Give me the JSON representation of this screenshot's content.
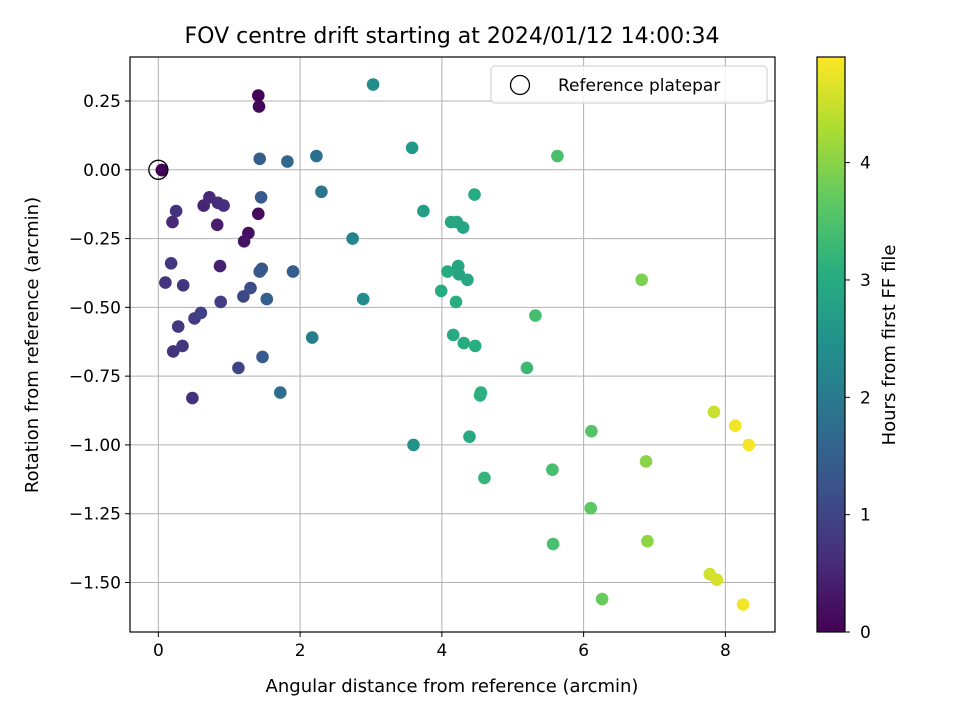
{
  "chart_data": {
    "type": "scatter",
    "title": "FOV centre drift starting at 2024/01/12 14:00:34",
    "xlabel": "Angular distance from reference (arcmin)",
    "ylabel": "Rotation from reference (arcmin)",
    "xlim": [
      -0.4,
      8.7
    ],
    "ylim": [
      -1.68,
      0.41
    ],
    "xticks": [
      0,
      2,
      4,
      6,
      8
    ],
    "xtick_labels": [
      "0",
      "2",
      "4",
      "6",
      "8"
    ],
    "yticks": [
      0.25,
      0.0,
      -0.25,
      -0.5,
      -0.75,
      -1.0,
      -1.25,
      -1.5
    ],
    "ytick_labels": [
      "0.25",
      "0.00",
      "−0.25",
      "−0.50",
      "−0.75",
      "−1.00",
      "−1.25",
      "−1.50"
    ],
    "grid": true,
    "colormap": "viridis",
    "legend": {
      "position": "top-right",
      "entries": [
        "Reference platepar"
      ]
    },
    "reference_point": {
      "x": 0.0,
      "y": 0.0
    },
    "colorbar": {
      "label": "Hours from first FF file",
      "range": [
        0,
        4.9
      ],
      "ticks": [
        0,
        1,
        2,
        3,
        4
      ],
      "tick_labels": [
        "0",
        "1",
        "2",
        "3",
        "4"
      ]
    },
    "series": [
      {
        "x": [
          1.41,
          1.42,
          1.41,
          1.27,
          1.21,
          0.05,
          0.05,
          0.2,
          0.83,
          0.87,
          0.1,
          0.25,
          0.64,
          0.72,
          0.84,
          0.92,
          0.35,
          0.51,
          0.18,
          0.28,
          0.34,
          0.21,
          0.48,
          0.88,
          0.6,
          1.13,
          1.3,
          1.2,
          1.45,
          1.43,
          1.46,
          1.43,
          1.53,
          1.47,
          1.9,
          1.72,
          1.82,
          2.23,
          2.3,
          2.17,
          2.74,
          2.89,
          3.03,
          3.58,
          3.6,
          3.74,
          4.13,
          4.21,
          4.3,
          4.23,
          4.24,
          4.08,
          4.36,
          3.99,
          4.2,
          4.46,
          4.16,
          4.31,
          4.47,
          4.55,
          4.54,
          4.39,
          4.6,
          5.2,
          5.32,
          5.63,
          5.56,
          5.57,
          6.11,
          6.1,
          6.26,
          6.82,
          6.88,
          6.9,
          7.84,
          7.78,
          7.88,
          8.14,
          8.33,
          8.25
        ],
        "y": [
          0.27,
          0.23,
          -0.16,
          -0.23,
          -0.26,
          -0.001,
          -0.001,
          -0.19,
          -0.2,
          -0.35,
          -0.41,
          -0.15,
          -0.13,
          -0.1,
          -0.12,
          -0.13,
          -0.42,
          -0.54,
          -0.34,
          -0.57,
          -0.64,
          -0.66,
          -0.83,
          -0.48,
          -0.52,
          -0.72,
          -0.43,
          -0.46,
          -0.1,
          0.04,
          -0.36,
          -0.37,
          -0.47,
          -0.68,
          -0.37,
          -0.81,
          0.03,
          0.05,
          -0.08,
          -0.61,
          -0.25,
          -0.47,
          0.31,
          0.08,
          -1.0,
          -0.15,
          -0.19,
          -0.19,
          -0.21,
          -0.35,
          -0.38,
          -0.37,
          -0.4,
          -0.44,
          -0.48,
          -0.09,
          -0.6,
          -0.63,
          -0.64,
          -0.81,
          -0.82,
          -0.97,
          -1.12,
          -0.72,
          -0.53,
          0.05,
          -1.09,
          -1.36,
          -0.95,
          -1.23,
          -1.56,
          -0.4,
          -1.06,
          -1.35,
          -0.88,
          -1.47,
          -1.49,
          -0.93,
          -1.0,
          -1.58
        ],
        "hours": [
          0.05,
          0.1,
          0.15,
          0.2,
          0.25,
          0.02,
          0.02,
          0.55,
          0.4,
          0.45,
          0.75,
          0.7,
          0.5,
          0.55,
          0.6,
          0.65,
          0.75,
          0.85,
          0.8,
          0.8,
          0.8,
          0.7,
          0.65,
          0.9,
          0.95,
          1.0,
          1.15,
          1.05,
          1.35,
          1.45,
          1.3,
          1.35,
          1.5,
          1.4,
          1.45,
          1.75,
          1.6,
          1.8,
          1.9,
          2.05,
          2.2,
          2.35,
          2.4,
          2.6,
          2.5,
          2.7,
          2.9,
          2.9,
          2.85,
          2.9,
          2.85,
          2.95,
          2.9,
          3.0,
          3.05,
          3.0,
          2.95,
          3.0,
          3.05,
          3.1,
          3.1,
          2.95,
          3.2,
          3.3,
          3.4,
          3.45,
          3.4,
          3.45,
          3.55,
          3.65,
          3.75,
          3.9,
          4.0,
          4.05,
          4.5,
          4.55,
          4.6,
          4.8,
          4.85,
          4.8
        ]
      }
    ]
  }
}
